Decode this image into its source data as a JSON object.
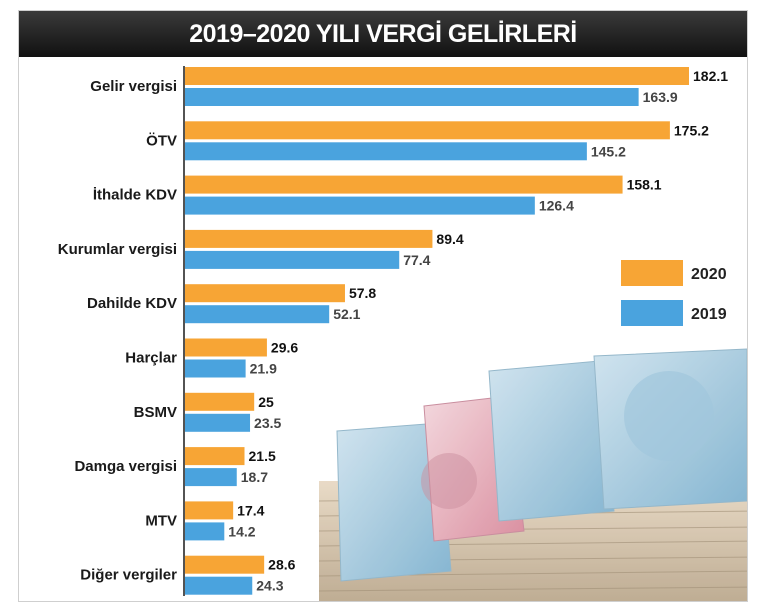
{
  "chart_data": {
    "type": "bar",
    "orientation": "horizontal",
    "title": "2019–2020 YILI VERGİ GELİRLERİ",
    "categories": [
      "Gelir vergisi",
      "ÖTV",
      "İthalde KDV",
      "Kurumlar vergisi",
      "Dahilde KDV",
      "Harçlar",
      "BSMV",
      "Damga vergisi",
      "MTV",
      "Diğer vergiler"
    ],
    "series": [
      {
        "name": "2020",
        "color": "#f7a535",
        "values": [
          182.1,
          175.2,
          158.1,
          89.4,
          57.8,
          29.6,
          25,
          21.5,
          17.4,
          28.6
        ],
        "labels": [
          "182.1",
          "175.2",
          "158.1",
          "89.4",
          "57.8",
          "29.6",
          "25",
          "21.5",
          "17.4",
          "28.6"
        ]
      },
      {
        "name": "2019",
        "color": "#4aa3de",
        "values": [
          163.9,
          145.2,
          126.4,
          77.4,
          52.1,
          21.9,
          23.5,
          18.7,
          14.2,
          24.3
        ],
        "labels": [
          "163.9",
          "145.2",
          "126.4",
          "77.4",
          "52.1",
          "21.9",
          "23.5",
          "18.7",
          "14.2",
          "24.3"
        ]
      }
    ],
    "xlim": [
      0,
      182.1
    ],
    "grid": false,
    "legend": "right"
  }
}
